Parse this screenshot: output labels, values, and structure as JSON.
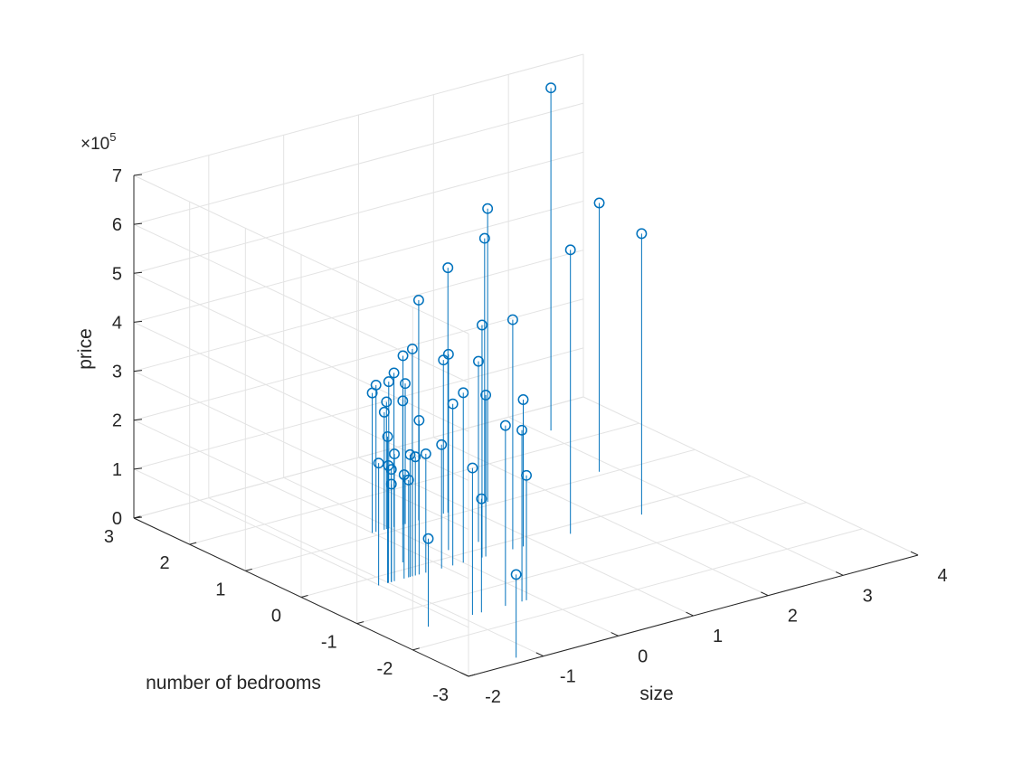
{
  "chart_data": {
    "type": "scatter",
    "subtype": "stem3",
    "xlabel": "size",
    "ylabel": "number of bedrooms",
    "zlabel": "price",
    "z_exponent_label": "×10",
    "z_exponent_power": "5",
    "xlim": [
      -2,
      4
    ],
    "ylim": [
      -3,
      3
    ],
    "zlim": [
      0,
      700000
    ],
    "xticks": [
      "-2",
      "-1",
      "0",
      "1",
      "2",
      "3",
      "4"
    ],
    "yticks": [
      "-3",
      "-2",
      "-1",
      "0",
      "1",
      "2",
      "3"
    ],
    "zticks": [
      "0",
      "1",
      "2",
      "3",
      "4",
      "5",
      "6",
      "7"
    ],
    "grid": true,
    "marker": "circle",
    "color": "#0072BD",
    "points": [
      {
        "x": 0.1,
        "y": 0.18,
        "z": 399900
      },
      {
        "x": -0.51,
        "y": 0.18,
        "z": 329900
      },
      {
        "x": 0.5,
        "y": 0.18,
        "z": 369000
      },
      {
        "x": -0.74,
        "y": -1.54,
        "z": 232000
      },
      {
        "x": 1.26,
        "y": 1.09,
        "z": 539900
      },
      {
        "x": -0.02,
        "y": 1.09,
        "z": 299900
      },
      {
        "x": -0.59,
        "y": -0.22,
        "z": 314900
      },
      {
        "x": -0.73,
        "y": -0.22,
        "z": 198999
      },
      {
        "x": -0.79,
        "y": -0.22,
        "z": 212000
      },
      {
        "x": -0.64,
        "y": -0.22,
        "z": 242500
      },
      {
        "x": -0.08,
        "y": 1.09,
        "z": 239999
      },
      {
        "x": -0.0,
        "y": -0.22,
        "z": 347000
      },
      {
        "x": -0.14,
        "y": -0.22,
        "z": 329999
      },
      {
        "x": 3.12,
        "y": 2.4,
        "z": 699900
      },
      {
        "x": -0.92,
        "y": -0.22,
        "z": 259900
      },
      {
        "x": 0.38,
        "y": 1.09,
        "z": 449900
      },
      {
        "x": -0.86,
        "y": -1.54,
        "z": 299900
      },
      {
        "x": -0.96,
        "y": -0.22,
        "z": 199900
      },
      {
        "x": 0.77,
        "y": 1.09,
        "z": 499998
      },
      {
        "x": 1.3,
        "y": 1.09,
        "z": 599000
      },
      {
        "x": -0.29,
        "y": -0.22,
        "z": 252900
      },
      {
        "x": -0.14,
        "y": -1.54,
        "z": 255000
      },
      {
        "x": -0.5,
        "y": -0.22,
        "z": 242900
      },
      {
        "x": -0.05,
        "y": 1.09,
        "z": 259900
      },
      {
        "x": 2.38,
        "y": -0.22,
        "z": 573900
      },
      {
        "x": -1.13,
        "y": -0.22,
        "z": 249900
      },
      {
        "x": -0.68,
        "y": -0.22,
        "z": 464500
      },
      {
        "x": 0.66,
        "y": -0.22,
        "z": 469000
      },
      {
        "x": 0.25,
        "y": -0.22,
        "z": 475000
      },
      {
        "x": 0.8,
        "y": -0.22,
        "z": 299900
      },
      {
        "x": -0.2,
        "y": -1.54,
        "z": 349900
      },
      {
        "x": -1.26,
        "y": -2.86,
        "z": 169900
      },
      {
        "x": 0.05,
        "y": 1.09,
        "z": 314900
      },
      {
        "x": 1.43,
        "y": -0.22,
        "z": 579900
      },
      {
        "x": -0.24,
        "y": 1.09,
        "z": 285900
      },
      {
        "x": -0.71,
        "y": -0.22,
        "z": 249900
      },
      {
        "x": -0.96,
        "y": -0.22,
        "z": 229900
      },
      {
        "x": 0.17,
        "y": 1.09,
        "z": 345000
      },
      {
        "x": 2.79,
        "y": 1.09,
        "z": 549000
      },
      {
        "x": 0.2,
        "y": 1.09,
        "z": 287000
      },
      {
        "x": -0.42,
        "y": -1.54,
        "z": 368500
      },
      {
        "x": 0.3,
        "y": -0.22,
        "z": 329900
      },
      {
        "x": 0.71,
        "y": 1.09,
        "z": 314000
      },
      {
        "x": -1.01,
        "y": -0.22,
        "z": 299000
      },
      {
        "x": -1.45,
        "y": -1.54,
        "z": 179900
      },
      {
        "x": -0.19,
        "y": 1.09,
        "z": 299900
      },
      {
        "x": -1.0,
        "y": -0.22,
        "z": 239500
      }
    ]
  }
}
